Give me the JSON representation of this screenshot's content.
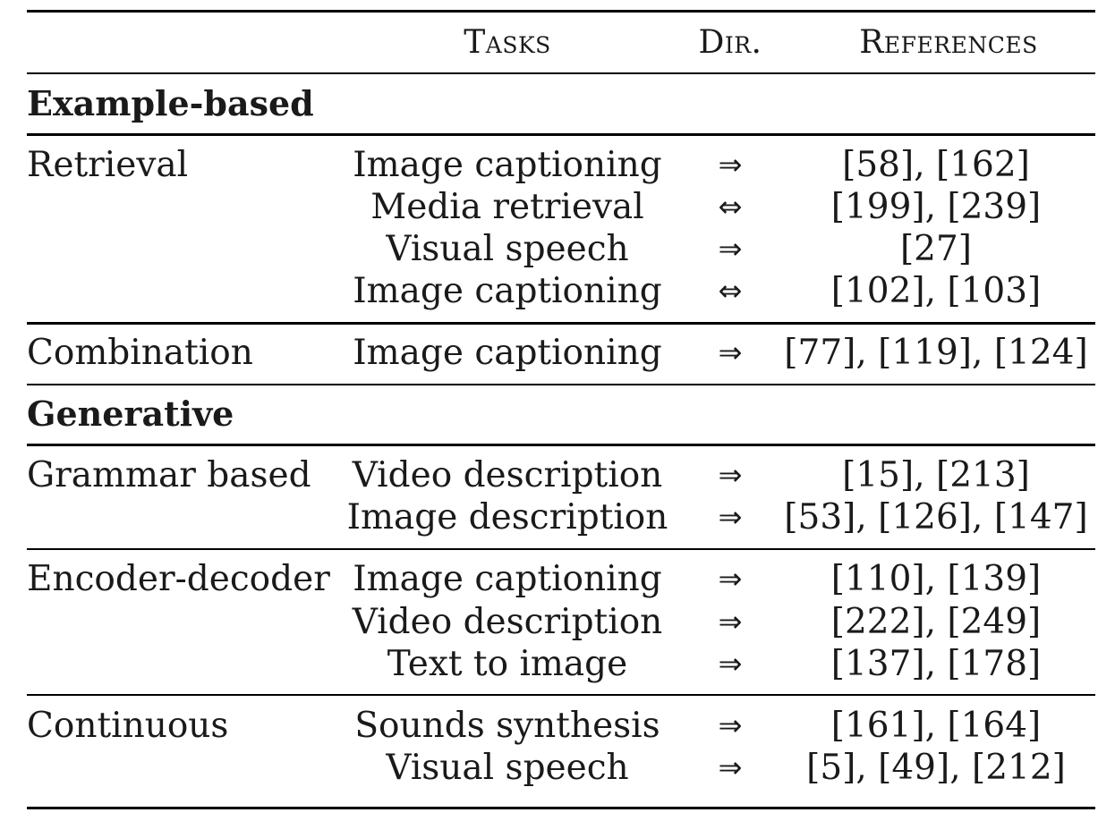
{
  "header": {
    "tasks": "Tasks",
    "direction": "Dir.",
    "references": "References"
  },
  "sections": [
    {
      "title": "Example-based",
      "groups": [
        {
          "method": "Retrieval",
          "rows": [
            {
              "task": "Image captioning",
              "dir": "⇒",
              "refs": "[58], [162]"
            },
            {
              "task": "Media retrieval",
              "dir": "⇔",
              "refs": "[199], [239]"
            },
            {
              "task": "Visual speech",
              "dir": "⇒",
              "refs": "[27]"
            },
            {
              "task": "Image captioning",
              "dir": "⇔",
              "refs": "[102], [103]"
            }
          ]
        },
        {
          "method": "Combination",
          "rows": [
            {
              "task": "Image captioning",
              "dir": "⇒",
              "refs": "[77], [119], [124]"
            }
          ]
        }
      ]
    },
    {
      "title": "Generative",
      "groups": [
        {
          "method": "Grammar based",
          "rows": [
            {
              "task": "Video description",
              "dir": "⇒",
              "refs": "[15], [213]"
            },
            {
              "task": "Image description",
              "dir": "⇒",
              "refs": "[53], [126], [147]"
            }
          ]
        },
        {
          "method": "Encoder-decoder",
          "rows": [
            {
              "task": "Image captioning",
              "dir": "⇒",
              "refs": "[110], [139]"
            },
            {
              "task": "Video description",
              "dir": "⇒",
              "refs": "[222], [249]"
            },
            {
              "task": "Text to image",
              "dir": "⇒",
              "refs": "[137], [178]"
            }
          ]
        },
        {
          "method": "Continuous",
          "rows": [
            {
              "task": "Sounds synthesis",
              "dir": "⇒",
              "refs": "[161], [164]"
            },
            {
              "task": "Visual speech",
              "dir": "⇒",
              "refs": "[5], [49], [212]"
            }
          ]
        }
      ]
    }
  ]
}
